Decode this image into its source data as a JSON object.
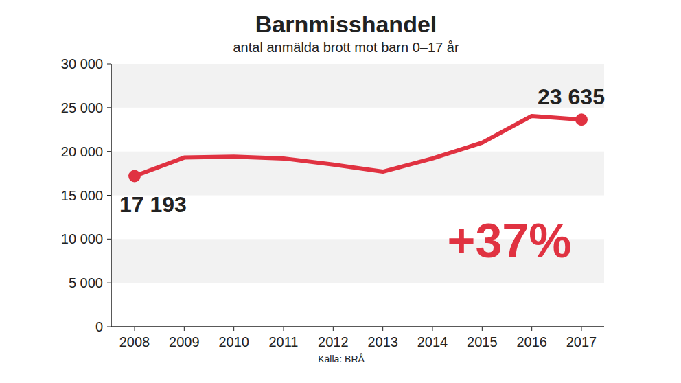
{
  "chart_data": {
    "type": "line",
    "title": "Barnmisshandel",
    "subtitle": "antal anmälda brott mot barn 0–17 år",
    "categories": [
      "2008",
      "2009",
      "2010",
      "2011",
      "2012",
      "2013",
      "2014",
      "2015",
      "2016",
      "2017"
    ],
    "values": [
      17193,
      19300,
      19400,
      19200,
      18500,
      17700,
      19200,
      21000,
      24050,
      23635
    ],
    "value_labels": [
      "17 193",
      null,
      null,
      null,
      null,
      null,
      null,
      null,
      null,
      "23 635"
    ],
    "color": "#e03241",
    "ylim": [
      0,
      30000
    ],
    "yticks": [
      0,
      {
        "value": 5000,
        "label": "5 000"
      },
      {
        "value": 10000,
        "label": "10 000"
      },
      {
        "value": 15000,
        "label": "15 000"
      },
      {
        "value": 20000,
        "label": "20 000"
      },
      {
        "value": 25000,
        "label": "25 000"
      },
      {
        "value": 30000,
        "label": "30 000"
      }
    ],
    "grid": true,
    "annotation": "+37%",
    "source": "Källa: BRÅ"
  }
}
